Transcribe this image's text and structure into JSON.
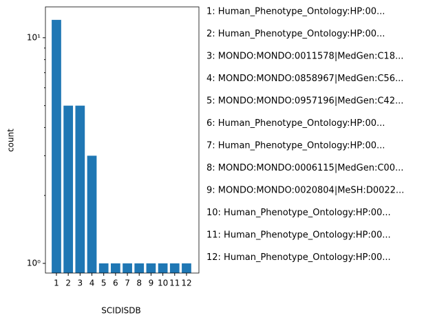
{
  "chart_data": {
    "type": "bar",
    "xlabel": "SCIDISDB",
    "ylabel": "count",
    "categories": [
      "1",
      "2",
      "3",
      "4",
      "5",
      "6",
      "7",
      "8",
      "9",
      "10",
      "11",
      "12"
    ],
    "values": [
      12,
      5,
      5,
      3,
      1,
      1,
      1,
      1,
      1,
      1,
      1,
      1
    ],
    "color": "#1f77b4",
    "log_y": true,
    "ylim": [
      0.906,
      13.7
    ],
    "yticks": [
      {
        "value": 1,
        "label": "10⁰"
      },
      {
        "value": 10,
        "label": "10¹"
      }
    ],
    "yminorticks": [
      2,
      3,
      4,
      5,
      6,
      7,
      8,
      9
    ],
    "annotations": [
      "1: Human_Phenotype_Ontology:HP:00...",
      "2: Human_Phenotype_Ontology:HP:00...",
      "3: MONDO:MONDO:0011578|MedGen:C18...",
      "4: MONDO:MONDO:0858967|MedGen:C56...",
      "5: MONDO:MONDO:0957196|MedGen:C42...",
      "6: Human_Phenotype_Ontology:HP:00...",
      "7: Human_Phenotype_Ontology:HP:00...",
      "8: MONDO:MONDO:0006115|MedGen:C00...",
      "9: MONDO:MONDO:0020804|MeSH:D0022...",
      "10: Human_Phenotype_Ontology:HP:00...",
      "11: Human_Phenotype_Ontology:HP:00...",
      "12: Human_Phenotype_Ontology:HP:00..."
    ]
  }
}
